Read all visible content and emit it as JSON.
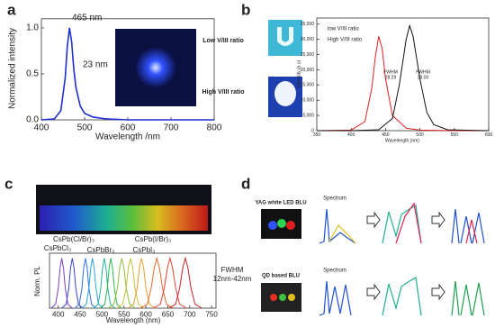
{
  "chart_data": [
    {
      "type": "line",
      "panel": "a",
      "xlabel": "Wavelength /nm",
      "ylabel": "Normalized intensity",
      "xlim": [
        400,
        800
      ],
      "xticks": [
        400,
        500,
        600,
        700,
        800
      ],
      "ylim": [
        0,
        1.1
      ],
      "yticks": [
        {
          "value": 0,
          "label": "0.0"
        },
        {
          "value": 0.5,
          "label": "0.5"
        },
        {
          "value": 1,
          "label": "1.0"
        }
      ],
      "annotations": [
        "465 nm",
        "23 nm"
      ],
      "series": [
        {
          "color": "#1f2fd0",
          "x": [
            400,
            430,
            445,
            455,
            460,
            465,
            470,
            475,
            480,
            490,
            500,
            520,
            550,
            600,
            700,
            800
          ],
          "values": [
            0,
            0.01,
            0.1,
            0.45,
            0.8,
            1.0,
            0.85,
            0.55,
            0.35,
            0.15,
            0.07,
            0.03,
            0.01,
            0,
            0,
            0
          ]
        }
      ]
    },
    {
      "type": "line",
      "panel": "b",
      "xlabel": "Wavelength (nm)",
      "ylabel": "Intensity (a.u)",
      "xlim": [
        350,
        600
      ],
      "xticks": [
        350,
        400,
        450,
        500,
        550,
        600
      ],
      "ylim": [
        0,
        37000
      ],
      "yticks": [
        0,
        {
          "value": 5000,
          "label": "5,000"
        },
        {
          "value": 10000,
          "label": "10,000"
        },
        {
          "value": 15000,
          "label": "15,000"
        },
        {
          "value": 20000,
          "label": "20,000"
        },
        {
          "value": 25000,
          "label": "25,000"
        },
        {
          "value": 30000,
          "label": "30,000"
        },
        {
          "value": 35000,
          "label": "35,000"
        }
      ],
      "annotations": [
        "Low V/III ratio",
        "High V/III ratio",
        "FWHM",
        "28.29",
        "FWHM",
        "29.00"
      ],
      "series": [
        {
          "name": "low V/III ratio",
          "color": "#e02020",
          "x": [
            350,
            400,
            420,
            430,
            435,
            440,
            445,
            450,
            460,
            480,
            500,
            550,
            600
          ],
          "values": [
            0,
            200,
            3000,
            14000,
            24000,
            31000,
            27000,
            17000,
            5000,
            800,
            200,
            0,
            0
          ]
        },
        {
          "name": "High V/III ratio",
          "color": "#111111",
          "x": [
            350,
            400,
            440,
            460,
            470,
            480,
            485,
            490,
            500,
            510,
            520,
            540,
            600
          ],
          "values": [
            0,
            0,
            300,
            4000,
            15000,
            30000,
            34500,
            31000,
            17000,
            6000,
            2000,
            300,
            0
          ]
        }
      ]
    },
    {
      "type": "line",
      "panel": "c",
      "xlabel": "Wavelength (nm)",
      "ylabel": "Norm. PL",
      "xlim": [
        380,
        760
      ],
      "xticks": [
        400,
        450,
        500,
        550,
        600,
        650,
        700,
        750
      ],
      "ylim": [
        0,
        1.1
      ],
      "annotations": [
        "CsPb(Cl/Br)₃",
        "CsPb(I/Br)₃",
        "CsPbCl₃",
        "CsPbBr₃",
        "CsPbI₃",
        "FWHM",
        "12nm-42nm"
      ],
      "series": [
        {
          "color": "#7a3fbf",
          "x": [
            384,
            394,
            400,
            404,
            408,
            412,
            416,
            422,
            432
          ],
          "values": [
            0,
            0.08,
            0.4,
            0.8,
            1,
            0.8,
            0.4,
            0.08,
            0
          ]
        },
        {
          "color": "#3b3fd0",
          "x": [
            408,
            418,
            424,
            428,
            432,
            436,
            440,
            446,
            456
          ],
          "values": [
            0,
            0.08,
            0.4,
            0.8,
            1,
            0.8,
            0.4,
            0.08,
            0
          ]
        },
        {
          "color": "#2d6fe0",
          "x": [
            438,
            448,
            454,
            458,
            462,
            466,
            470,
            476,
            486
          ],
          "values": [
            0,
            0.08,
            0.4,
            0.8,
            1,
            0.8,
            0.4,
            0.08,
            0
          ]
        },
        {
          "color": "#2ba0d8",
          "x": [
            454,
            464,
            470,
            474,
            478,
            482,
            486,
            492,
            502
          ],
          "values": [
            0,
            0.08,
            0.4,
            0.8,
            1,
            0.8,
            0.4,
            0.08,
            0
          ]
        },
        {
          "color": "#1fb39c",
          "x": [
            481,
            491,
            497,
            501,
            505,
            509,
            513,
            519,
            529
          ],
          "values": [
            0,
            0.08,
            0.4,
            0.8,
            1,
            0.8,
            0.4,
            0.08,
            0
          ]
        },
        {
          "color": "#2eb84a",
          "x": [
            496,
            506,
            512,
            516,
            520,
            524,
            528,
            534,
            544
          ],
          "values": [
            0,
            0.08,
            0.4,
            0.8,
            1,
            0.8,
            0.4,
            0.08,
            0
          ]
        },
        {
          "color": "#8ac23a",
          "x": [
            514,
            527,
            535,
            540,
            545,
            550,
            555,
            563,
            576
          ],
          "values": [
            0,
            0.08,
            0.4,
            0.8,
            1,
            0.8,
            0.4,
            0.08,
            0
          ]
        },
        {
          "color": "#c7c233",
          "x": [
            534,
            547,
            555,
            560,
            565,
            570,
            575,
            583,
            596
          ],
          "values": [
            0,
            0.08,
            0.4,
            0.8,
            1,
            0.8,
            0.4,
            0.08,
            0
          ]
        },
        {
          "color": "#e0a030",
          "x": [
            559,
            572,
            580,
            585,
            590,
            595,
            600,
            608,
            621
          ],
          "values": [
            0,
            0.08,
            0.4,
            0.8,
            1,
            0.8,
            0.4,
            0.08,
            0
          ]
        },
        {
          "color": "#e86a28",
          "x": [
            587,
            603,
            612,
            619,
            625,
            631,
            638,
            647,
            663
          ],
          "values": [
            0,
            0.08,
            0.4,
            0.8,
            1,
            0.8,
            0.4,
            0.08,
            0
          ]
        },
        {
          "color": "#e04030",
          "x": [
            617,
            633,
            642,
            649,
            655,
            661,
            668,
            677,
            693
          ],
          "values": [
            0,
            0.08,
            0.4,
            0.8,
            1,
            0.8,
            0.4,
            0.08,
            0
          ]
        },
        {
          "color": "#c62020",
          "x": [
            652,
            668,
            677,
            684,
            690,
            696,
            703,
            712,
            728
          ],
          "values": [
            0,
            0.08,
            0.4,
            0.8,
            1,
            0.8,
            0.4,
            0.08,
            0
          ]
        }
      ]
    }
  ],
  "panel_d": {
    "panel": "d",
    "rows": [
      {
        "label": "YAG white LED BLU",
        "spectrum": "Spectrum"
      },
      {
        "label": "QD based BLU",
        "spectrum": "Spectrum"
      }
    ]
  }
}
